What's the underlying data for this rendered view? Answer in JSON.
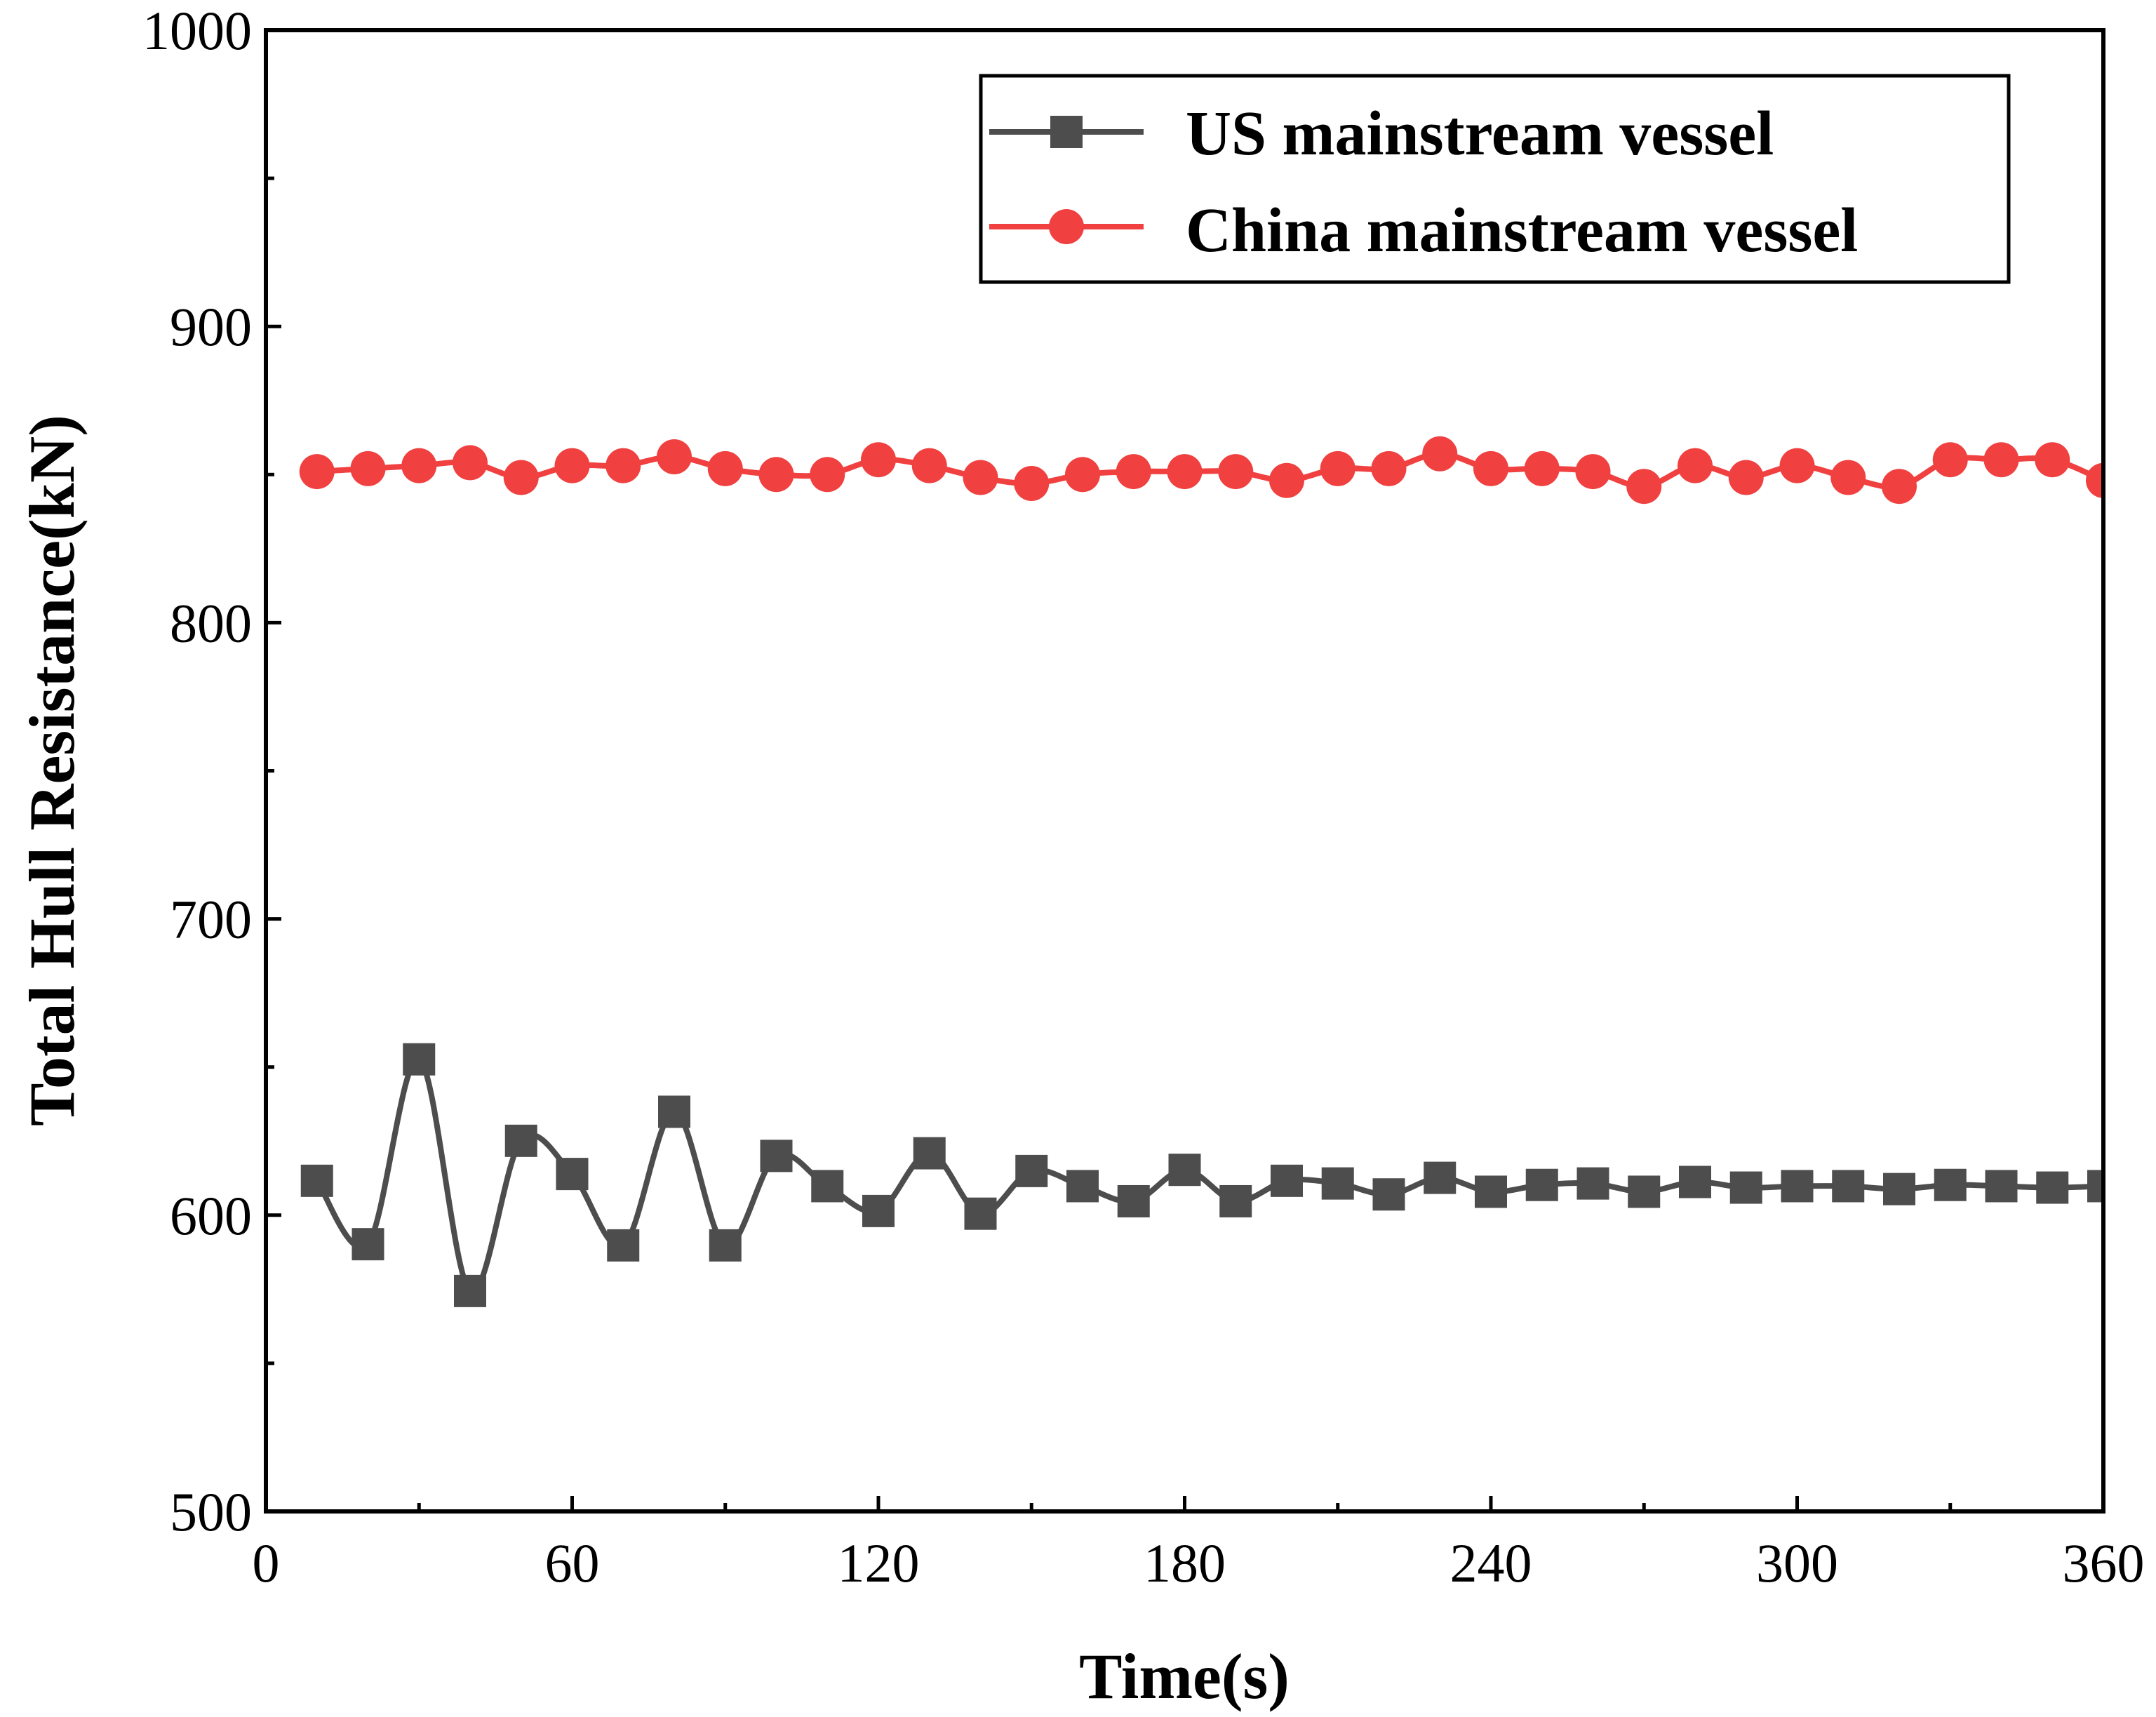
{
  "chart_data": {
    "type": "line",
    "title": "",
    "xlabel": "Time(s)",
    "ylabel": "Total Hull Resistance(kN)",
    "xlim": [
      0,
      360
    ],
    "ylim": [
      500,
      1000
    ],
    "xticks": [
      0,
      60,
      120,
      180,
      240,
      300,
      360
    ],
    "yticks": [
      500,
      600,
      700,
      800,
      900,
      1000
    ],
    "grid": false,
    "legend_position": "top-right",
    "x": [
      10,
      20,
      30,
      40,
      50,
      60,
      70,
      80,
      90,
      100,
      110,
      120,
      130,
      140,
      150,
      160,
      170,
      180,
      190,
      200,
      210,
      220,
      230,
      240,
      250,
      260,
      270,
      280,
      290,
      300,
      310,
      320,
      330,
      340,
      350,
      360
    ],
    "series": [
      {
        "name": "US mainstream vessel",
        "color": "#4d4d4d",
        "marker": "square",
        "values": [
          611.6,
          590.2,
          652.6,
          574.4,
          625.1,
          613.9,
          589.8,
          634.9,
          589.8,
          620.0,
          609.8,
          601.4,
          620.9,
          600.5,
          614.9,
          609.8,
          604.7,
          615.3,
          604.7,
          611.6,
          610.7,
          607.0,
          612.6,
          607.9,
          610.2,
          610.7,
          607.9,
          611.2,
          609.3,
          609.8,
          609.8,
          608.8,
          610.2,
          609.8,
          609.3,
          609.8
        ]
      },
      {
        "name": "China mainstream vessel",
        "color": "#f04040",
        "marker": "circle",
        "values": [
          851,
          852,
          853,
          854,
          849,
          853,
          853,
          856,
          852,
          850,
          850,
          855,
          853,
          849,
          847,
          850,
          851,
          851,
          851,
          848,
          852,
          852,
          857,
          852,
          852,
          851,
          846,
          853,
          849,
          853,
          849,
          846,
          855,
          855,
          855,
          848
        ]
      }
    ]
  }
}
